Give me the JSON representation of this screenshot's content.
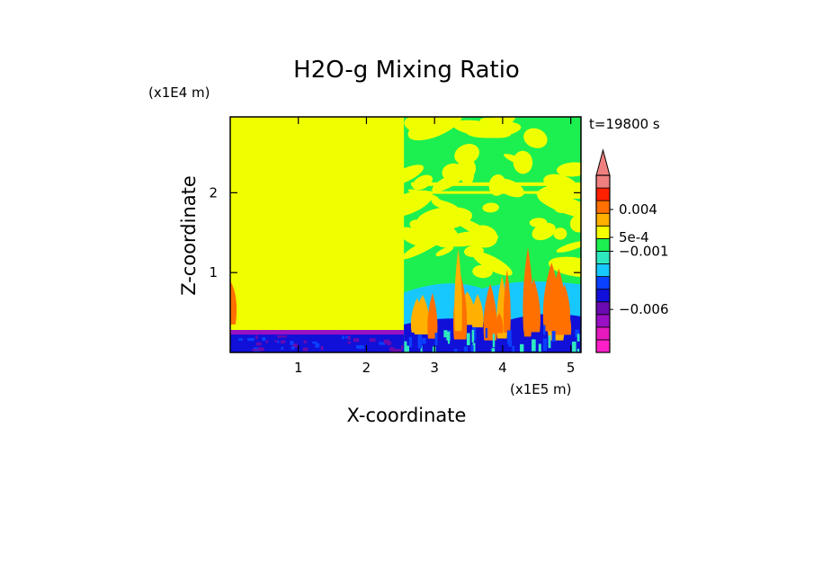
{
  "chart_data": {
    "type": "heatmap",
    "title": "H2O-g Mixing Ratio",
    "xlabel": "X-coordinate",
    "ylabel": "Z-coordinate",
    "x_scale_label": "(x1E5 m)",
    "y_scale_label": "(x1E4 m)",
    "time_label": "t=19800 s",
    "xlim": [
      0,
      5.15
    ],
    "ylim": [
      0,
      2.95
    ],
    "x_ticks": [
      1,
      2,
      3,
      4,
      5
    ],
    "y_ticks": [
      1,
      2
    ],
    "x_tick_labels": [
      "1",
      "2",
      "3",
      "4",
      "5"
    ],
    "y_tick_labels": [
      "1",
      "2"
    ],
    "colorbar": {
      "levels": 14,
      "colors": [
        "#ff1fc8",
        "#e61ac0",
        "#9a10c4",
        "#6a0ab0",
        "#1010d8",
        "#0a40ff",
        "#17c8ff",
        "#2ee8c0",
        "#1cf050",
        "#f6ff00",
        "#ffb000",
        "#ff7000",
        "#ff2000",
        "#f08080"
      ],
      "labels": [
        {
          "text": "0.004",
          "level": 11.3
        },
        {
          "text": "5e-4",
          "level": 9.1
        },
        {
          "text": "−0.001",
          "level": 8.0
        },
        {
          "text": "−0.006",
          "level": 3.4
        }
      ]
    },
    "regions": [
      {
        "name": "upper-left-uniform",
        "x": [
          0,
          2.55
        ],
        "z": [
          0.28,
          2.95
        ],
        "color": "#f0ff00"
      },
      {
        "name": "lower-left-blue",
        "x": [
          0,
          2.55
        ],
        "z": [
          0,
          0.22
        ],
        "color": "#1010d8"
      },
      {
        "name": "lower-left-purple-band",
        "x": [
          0,
          2.55
        ],
        "z": [
          0.22,
          0.28
        ],
        "color": "#9a10c4"
      },
      {
        "name": "right-lower-cyan",
        "x": [
          2.55,
          5.15
        ],
        "z": [
          0.3,
          0.9
        ],
        "color": "#17c8ff"
      },
      {
        "name": "right-mid-green",
        "x": [
          2.55,
          5.15
        ],
        "z": [
          0.9,
          2.95
        ],
        "color": "#1cf050"
      }
    ]
  }
}
